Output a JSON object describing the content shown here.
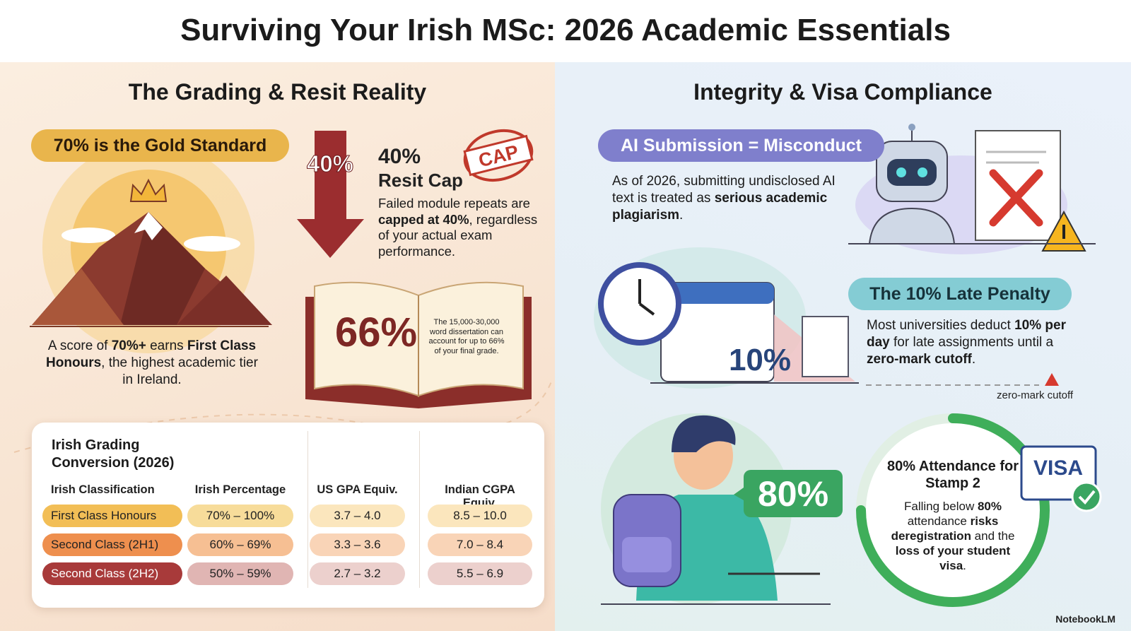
{
  "title": "Surviving Your Irish MSc: 2026 Academic Essentials",
  "left": {
    "heading": "The Grading & Resit Reality",
    "gold": {
      "badge": "70% is the Gold Standard",
      "body": [
        "A score of ",
        "70%+",
        " earns ",
        "First Class Honours",
        ", the highest academic tier in Ireland."
      ]
    },
    "resit": {
      "arrow_label": "40%",
      "stamp": "CAP",
      "title": "40%",
      "subtitle": "Resit Cap",
      "body": [
        "Failed module repeats are ",
        "capped at 40%",
        ", regardless of your actual exam performance."
      ]
    },
    "dissertation": {
      "figure": "66%",
      "note": "The 15,000-30,000 word dissertation can account for up to 66% of your final grade."
    },
    "table": {
      "title": "Irish Grading Conversion (2026)",
      "headers": [
        "Irish Classification",
        "Irish Percentage",
        "US GPA Equiv.",
        "Indian CGPA Equiv."
      ],
      "rows": [
        [
          "First Class Honours",
          "70% – 100%",
          "3.7 – 4.0",
          "8.5 – 10.0"
        ],
        [
          "Second Class (2H1)",
          "60% – 69%",
          "3.3 – 3.6",
          "7.0 – 8.4"
        ],
        [
          "Second Class (2H2)",
          "50% – 59%",
          "2.7 – 3.2",
          "5.5 – 6.9"
        ]
      ]
    }
  },
  "right": {
    "heading": "Integrity & Visa Compliance",
    "ai": {
      "badge": "AI Submission = Misconduct",
      "body": [
        "As of 2026, submitting undisclosed AI text is treated as ",
        "serious academic plagiarism",
        "."
      ]
    },
    "late": {
      "figure": "10%",
      "badge": "The 10% Late Penalty",
      "body": [
        "Most universities deduct ",
        "10% per day",
        " for late assignments until a ",
        "zero-mark cutoff",
        "."
      ],
      "cutoff_label": "zero-mark cutoff"
    },
    "attendance": {
      "figure": "80%",
      "title": "80% Attendance for Stamp 2",
      "visa": "VISA",
      "body": [
        "Falling below ",
        "80%",
        " attendance ",
        "risks deregistration",
        " and the ",
        "loss of your student visa",
        "."
      ]
    }
  },
  "footer": "NotebookLM"
}
